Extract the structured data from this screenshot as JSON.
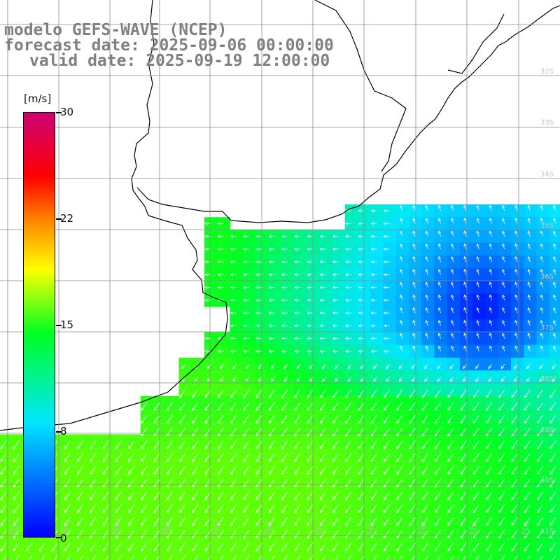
{
  "title": {
    "model": "modelo GEFS-WAVE (NCEP)",
    "forecast": "forecast date: 2025-09-06 00:00:00",
    "valid": "valid date: 2025-09-19 12:00:00"
  },
  "colorbar": {
    "unit": "[m/s]",
    "ticks": [
      "30",
      "22",
      "15",
      "8",
      "0"
    ],
    "tick_values": [
      30,
      22,
      15,
      8,
      0
    ],
    "colors": [
      "#0000ff",
      "#00e6ff",
      "#00ff22",
      "#ffff00",
      "#ff8000",
      "#ff0000",
      "#cc0077"
    ]
  },
  "map": {
    "land_color": "#ffffff",
    "coast_color": "#000000",
    "grid_color": "#808080",
    "lat_labels": [
      "32S",
      "33S",
      "34S",
      "35S",
      "36S",
      "37S",
      "38S",
      "39S",
      "40S",
      "41S"
    ],
    "lon_labels": [
      "61W",
      "60W",
      "59W",
      "58W",
      "57W",
      "56W",
      "55W",
      "54W",
      "53W",
      "52W",
      "51W"
    ]
  }
}
